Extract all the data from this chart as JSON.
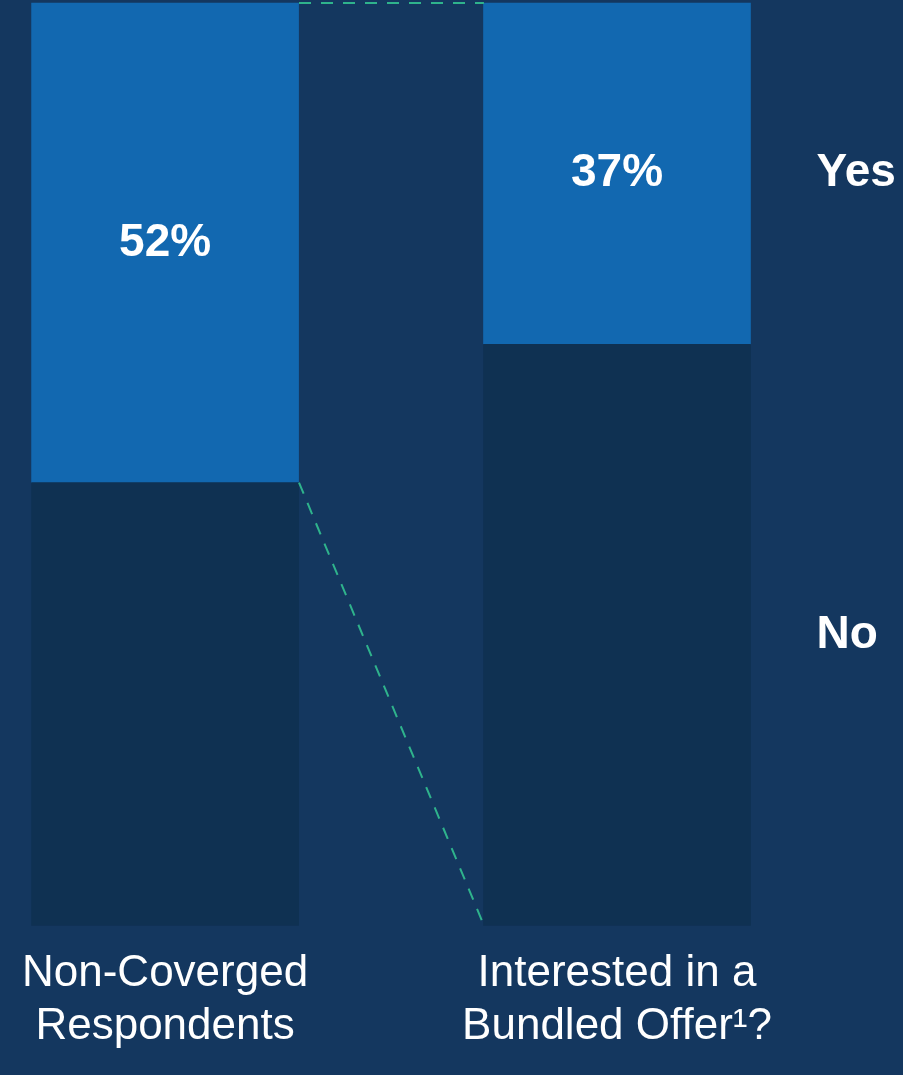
{
  "chart_data": {
    "type": "bar",
    "stacked": true,
    "categories": [
      "Non-Coverged Respondents",
      "Interested in a Bundled Offer¹?"
    ],
    "series": [
      {
        "name": "No",
        "color": "#0f3152",
        "values": [
          48,
          63
        ]
      },
      {
        "name": "Yes",
        "color": "#1268b0",
        "values": [
          52,
          37
        ],
        "value_labels": [
          "52%",
          "37%"
        ]
      }
    ],
    "ylim": [
      0,
      100
    ],
    "tick_labels": "x",
    "grid": false,
    "legend": false
  }
}
